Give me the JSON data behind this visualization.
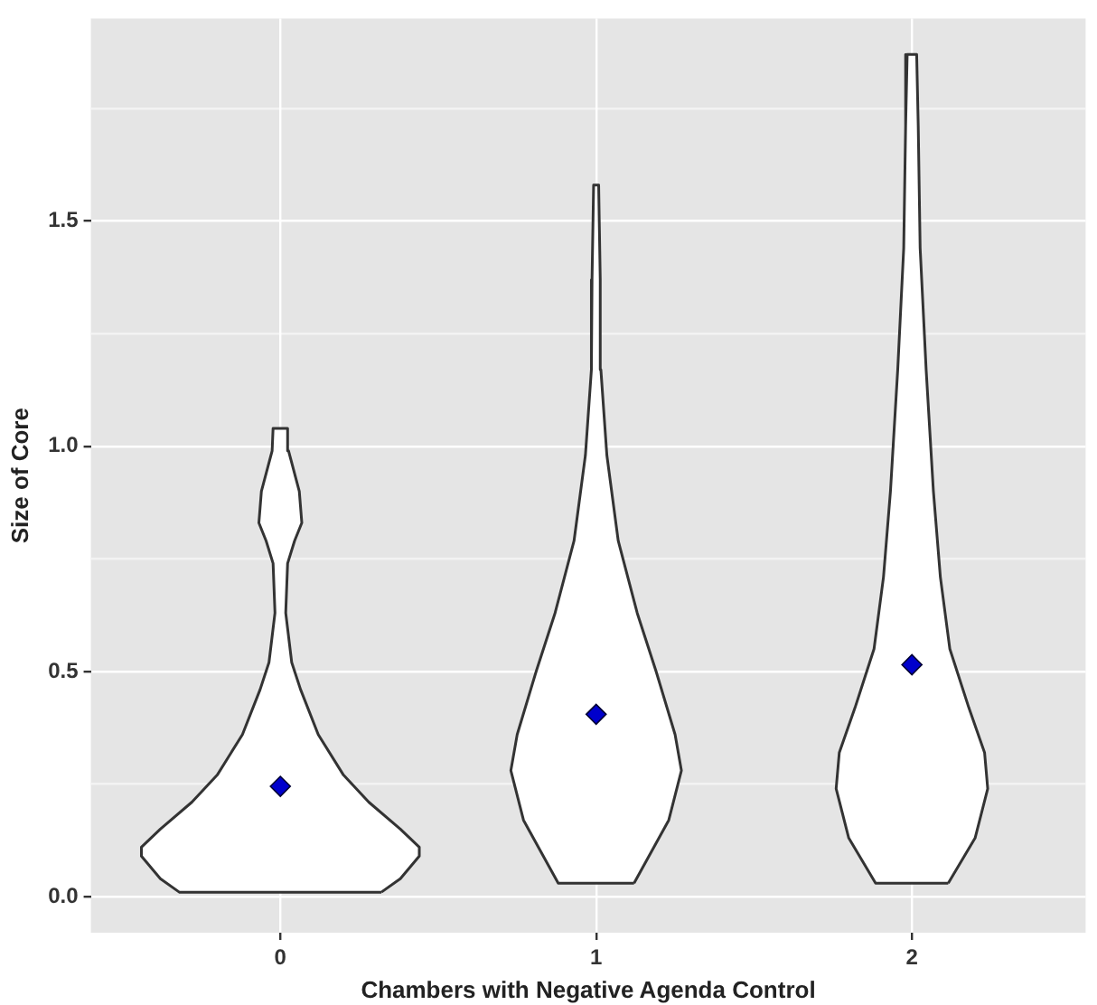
{
  "chart_data": {
    "type": "area",
    "xlabel": "Chambers with Negative Agenda Control",
    "ylabel": "Size of Core",
    "xlim": [
      -0.6,
      2.55
    ],
    "xticks": [
      0,
      1,
      2
    ],
    "ylim": [
      -0.08,
      1.95
    ],
    "yticks": [
      {
        "value": 0,
        "label": "0.0"
      },
      {
        "value": 0.25,
        "label": null
      },
      {
        "value": 0.5,
        "label": "0.5"
      },
      {
        "value": 0.75,
        "label": null
      },
      {
        "value": 1,
        "label": "1.0"
      },
      {
        "value": 1.25,
        "label": null
      },
      1.5,
      {
        "value": 1.75,
        "label": null
      }
    ],
    "grid": true,
    "series": [
      {
        "type": "area",
        "color": "#333333",
        "x": [
          0.32,
          0.38,
          0.44,
          0.44,
          0.38,
          0.28,
          0.2,
          0.12,
          0.064,
          0.036,
          0.017,
          0.023,
          0.045,
          0.068,
          0.06,
          0.026,
          0.023,
          -0.023,
          -0.026,
          -0.06,
          -0.068,
          -0.045,
          -0.023,
          -0.017,
          -0.036,
          -0.064,
          -0.12,
          -0.2,
          -0.28,
          -0.38,
          -0.44,
          -0.44,
          -0.38,
          -0.32,
          0.32
        ],
        "values": [
          0.01,
          0.04,
          0.09,
          0.11,
          0.15,
          0.21,
          0.27,
          0.36,
          0.46,
          0.52,
          0.63,
          0.74,
          0.79,
          0.83,
          0.9,
          0.99,
          1.04,
          1.04,
          0.99,
          0.9,
          0.83,
          0.79,
          0.74,
          0.63,
          0.52,
          0.46,
          0.36,
          0.27,
          0.21,
          0.15,
          0.11,
          0.09,
          0.04,
          0.01,
          0.01
        ]
      },
      {
        "type": "area",
        "color": "#333333",
        "x": [
          1.12,
          1.23,
          1.27,
          1.25,
          1.19,
          1.13,
          1.07,
          1.034,
          1.015,
          1.013,
          1.008,
          0.992,
          0.987,
          0.985,
          0.966,
          0.93,
          0.87,
          0.81,
          0.75,
          0.73,
          0.77,
          0.88,
          1.12
        ],
        "values": [
          0.03,
          0.17,
          0.28,
          0.36,
          0.5,
          0.63,
          0.79,
          0.98,
          1.17,
          1.37,
          1.58,
          1.58,
          1.37,
          1.17,
          0.98,
          0.79,
          0.63,
          0.5,
          0.36,
          0.28,
          0.17,
          0.03,
          0.03
        ]
      },
      {
        "type": "area",
        "color": "#333333",
        "x": [
          2.115,
          2.2,
          2.24,
          2.23,
          2.18,
          2.12,
          2.09,
          2.068,
          2.045,
          2.026,
          2.02,
          2.015,
          1.985,
          1.98,
          1.974,
          1.955,
          1.932,
          1.91,
          1.88,
          1.82,
          1.77,
          1.76,
          1.8,
          1.885,
          2.115
        ],
        "values": [
          0.03,
          0.13,
          0.24,
          0.32,
          0.42,
          0.55,
          0.71,
          0.9,
          1.17,
          1.44,
          1.71,
          1.87,
          1.87,
          1.71,
          1.44,
          1.17,
          0.9,
          0.71,
          0.55,
          0.42,
          0.32,
          0.24,
          0.13,
          0.03,
          0.03
        ]
      },
      {
        "type": "scatter",
        "color": "#0000cc",
        "marker": "diamond",
        "x": [
          0,
          1,
          2
        ],
        "values": [
          0.245,
          0.405,
          0.515
        ]
      }
    ]
  }
}
